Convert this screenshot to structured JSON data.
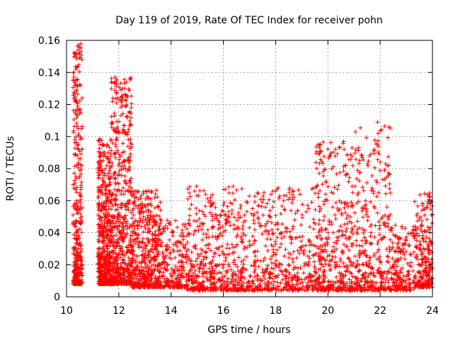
{
  "chart_data": {
    "type": "scatter",
    "title": "Day 119 of 2019, Rate Of TEC Index for receiver pohn",
    "xlabel": "GPS time / hours",
    "ylabel": "ROTI / TECUs",
    "xlim": [
      10,
      24
    ],
    "ylim": [
      0,
      0.16
    ],
    "x_ticks": [
      "10",
      "12",
      "14",
      "16",
      "18",
      "20",
      "22",
      "24"
    ],
    "y_ticks": [
      "0",
      "0.02",
      "0.04",
      "0.06",
      "0.08",
      "0.1",
      "0.12",
      "0.14",
      "0.16"
    ],
    "grid": true,
    "marker": "+",
    "series_color": "#ff0000",
    "clusters": [
      {
        "x_range": [
          10.25,
          10.6
        ],
        "y_range": [
          0.008,
          0.158
        ],
        "count": 380
      },
      {
        "x_range": [
          11.2,
          11.7
        ],
        "y_range": [
          0.008,
          0.099
        ],
        "count": 520
      },
      {
        "x_range": [
          11.7,
          12.5
        ],
        "y_range": [
          0.008,
          0.137
        ],
        "count": 600
      },
      {
        "x_range": [
          12.5,
          13.6
        ],
        "y_range": [
          0.006,
          0.067
        ],
        "count": 500
      },
      {
        "x_range": [
          13.6,
          14.6
        ],
        "y_range": [
          0.006,
          0.048
        ],
        "count": 220
      },
      {
        "x_range": [
          14.6,
          16.8
        ],
        "y_range": [
          0.004,
          0.069
        ],
        "count": 520
      },
      {
        "x_range": [
          16.8,
          19.5
        ],
        "y_range": [
          0.004,
          0.068
        ],
        "count": 480
      },
      {
        "x_range": [
          19.5,
          21.0
        ],
        "y_range": [
          0.004,
          0.097
        ],
        "count": 420
      },
      {
        "x_range": [
          21.0,
          22.4
        ],
        "y_range": [
          0.004,
          0.109
        ],
        "count": 360
      },
      {
        "x_range": [
          22.4,
          23.3
        ],
        "y_range": [
          0.004,
          0.045
        ],
        "count": 180
      },
      {
        "x_range": [
          23.3,
          24.0
        ],
        "y_range": [
          0.006,
          0.065
        ],
        "count": 240
      }
    ],
    "notable_points": [
      {
        "x": 10.45,
        "y": 0.157
      },
      {
        "x": 10.44,
        "y": 0.154
      },
      {
        "x": 11.85,
        "y": 0.137
      },
      {
        "x": 11.86,
        "y": 0.134
      },
      {
        "x": 12.1,
        "y": 0.125
      },
      {
        "x": 12.25,
        "y": 0.123
      },
      {
        "x": 21.9,
        "y": 0.109
      },
      {
        "x": 21.92,
        "y": 0.102
      },
      {
        "x": 20.6,
        "y": 0.097
      },
      {
        "x": 20.62,
        "y": 0.092
      }
    ]
  }
}
